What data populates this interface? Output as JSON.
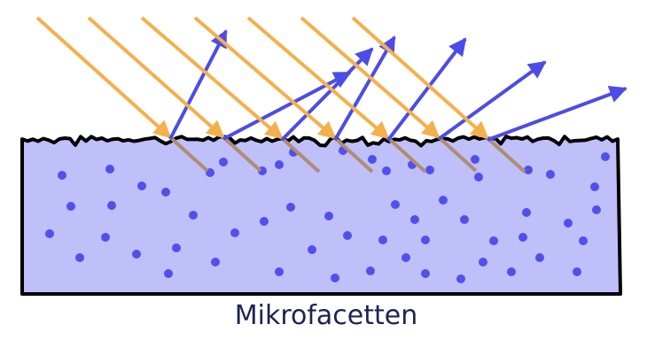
{
  "caption": "Mikrofacetten"
}
